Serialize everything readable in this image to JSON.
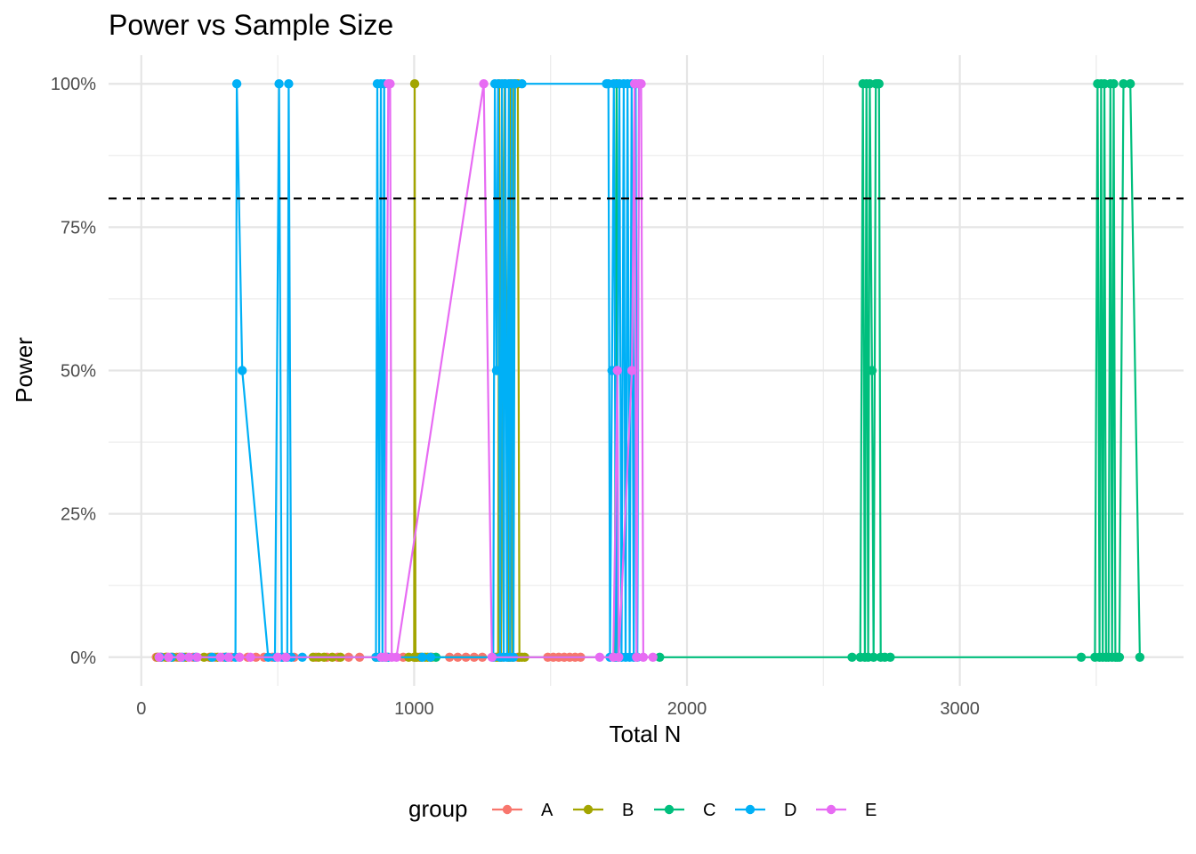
{
  "chart_data": {
    "type": "line",
    "title": "Power vs Sample Size",
    "xlabel": "Total N",
    "ylabel": "Power",
    "xlim": [
      -120,
      3820
    ],
    "ylim": [
      -0.05,
      1.05
    ],
    "x_ticks": [
      0,
      1000,
      2000,
      3000
    ],
    "x_tick_labels": [
      "0",
      "1000",
      "2000",
      "3000"
    ],
    "y_ticks": [
      0,
      0.25,
      0.5,
      0.75,
      1.0
    ],
    "y_tick_labels": [
      "0%",
      "25%",
      "50%",
      "75%",
      "100%"
    ],
    "reference_line": {
      "y": 0.8,
      "style": "dashed",
      "color": "#000000"
    },
    "grid": true,
    "legend": {
      "title": "group",
      "position": "bottom"
    },
    "series": [
      {
        "name": "A",
        "color": "#F8766D",
        "points": [
          [
            55,
            0
          ],
          [
            75,
            0
          ],
          [
            95,
            0
          ],
          [
            130,
            0
          ],
          [
            160,
            0
          ],
          [
            190,
            0
          ],
          [
            250,
            0
          ],
          [
            270,
            0
          ],
          [
            300,
            0
          ],
          [
            330,
            0
          ],
          [
            360,
            0
          ],
          [
            390,
            0
          ],
          [
            420,
            0
          ],
          [
            450,
            0
          ],
          [
            480,
            0
          ],
          [
            520,
            0
          ],
          [
            560,
            0
          ],
          [
            640,
            0
          ],
          [
            680,
            0
          ],
          [
            720,
            0
          ],
          [
            760,
            0
          ],
          [
            800,
            0
          ],
          [
            900,
            0
          ],
          [
            960,
            0
          ],
          [
            1020,
            0
          ],
          [
            1060,
            0
          ],
          [
            1130,
            0
          ],
          [
            1160,
            0
          ],
          [
            1190,
            0
          ],
          [
            1220,
            0
          ],
          [
            1250,
            0
          ],
          [
            1320,
            0
          ],
          [
            1350,
            0
          ],
          [
            1380,
            0
          ],
          [
            1490,
            0
          ],
          [
            1510,
            0
          ],
          [
            1530,
            0
          ],
          [
            1550,
            0
          ],
          [
            1570,
            0
          ],
          [
            1590,
            0
          ],
          [
            1610,
            0
          ]
        ]
      },
      {
        "name": "B",
        "color": "#A3A500",
        "points": [
          [
            60,
            0
          ],
          [
            90,
            0
          ],
          [
            115,
            0
          ],
          [
            140,
            0
          ],
          [
            165,
            0
          ],
          [
            230,
            0
          ],
          [
            255,
            0
          ],
          [
            280,
            0
          ],
          [
            310,
            0
          ],
          [
            630,
            0
          ],
          [
            650,
            0
          ],
          [
            670,
            0
          ],
          [
            700,
            0
          ],
          [
            730,
            0
          ],
          [
            860,
            0
          ],
          [
            980,
            0
          ],
          [
            1000,
            0
          ],
          [
            1002,
            1.0
          ],
          [
            1005,
            0
          ],
          [
            1010,
            0
          ],
          [
            1025,
            0
          ],
          [
            1040,
            0
          ],
          [
            1050,
            0
          ],
          [
            1065,
            0
          ],
          [
            1300,
            0
          ],
          [
            1308,
            0
          ],
          [
            1312,
            1.0
          ],
          [
            1318,
            0
          ],
          [
            1325,
            0.5
          ],
          [
            1332,
            1.0
          ],
          [
            1340,
            0.5
          ],
          [
            1346,
            0
          ],
          [
            1354,
            1.0
          ],
          [
            1360,
            0
          ],
          [
            1366,
            1.0
          ],
          [
            1372,
            1.0
          ],
          [
            1380,
            1.0
          ],
          [
            1386,
            0
          ],
          [
            1395,
            0
          ],
          [
            1405,
            0
          ]
        ]
      },
      {
        "name": "C",
        "color": "#00BF7D",
        "points": [
          [
            1080,
            0
          ],
          [
            1735,
            0
          ],
          [
            1742,
            1.0
          ],
          [
            1748,
            0
          ],
          [
            1900,
            0
          ],
          [
            2605,
            0
          ],
          [
            2635,
            0
          ],
          [
            2645,
            1.0
          ],
          [
            2652,
            0
          ],
          [
            2658,
            1.0
          ],
          [
            2664,
            0
          ],
          [
            2670,
            1.0
          ],
          [
            2678,
            0.5
          ],
          [
            2684,
            0
          ],
          [
            2692,
            1.0
          ],
          [
            2698,
            1.0
          ],
          [
            2704,
            1.0
          ],
          [
            2710,
            0
          ],
          [
            2725,
            0
          ],
          [
            2745,
            0
          ],
          [
            3445,
            0
          ],
          [
            3495,
            0
          ],
          [
            3505,
            1.0
          ],
          [
            3512,
            0
          ],
          [
            3518,
            1.0
          ],
          [
            3524,
            0
          ],
          [
            3530,
            1.0
          ],
          [
            3536,
            0
          ],
          [
            3545,
            0
          ],
          [
            3552,
            1.0
          ],
          [
            3558,
            0
          ],
          [
            3564,
            1.0
          ],
          [
            3570,
            0
          ],
          [
            3577,
            0
          ],
          [
            3585,
            0
          ],
          [
            3600,
            1.0
          ],
          [
            3625,
            1.0
          ],
          [
            3660,
            0
          ]
        ]
      },
      {
        "name": "D",
        "color": "#00B0F6",
        "points": [
          [
            70,
            0
          ],
          [
            110,
            0
          ],
          [
            150,
            0
          ],
          [
            200,
            0
          ],
          [
            260,
            0
          ],
          [
            310,
            0
          ],
          [
            345,
            0
          ],
          [
            350,
            1.0
          ],
          [
            370,
            0.5
          ],
          [
            465,
            0
          ],
          [
            490,
            0
          ],
          [
            505,
            1.0
          ],
          [
            515,
            0
          ],
          [
            535,
            0
          ],
          [
            540,
            1.0
          ],
          [
            550,
            0
          ],
          [
            590,
            0
          ],
          [
            860,
            0
          ],
          [
            865,
            1.0
          ],
          [
            872,
            0
          ],
          [
            878,
            1.0
          ],
          [
            884,
            0
          ],
          [
            890,
            1.0
          ],
          [
            895,
            0
          ],
          [
            905,
            0
          ],
          [
            1030,
            0
          ],
          [
            1060,
            0
          ],
          [
            1290,
            0
          ],
          [
            1296,
            1.0
          ],
          [
            1302,
            0.5
          ],
          [
            1308,
            1.0
          ],
          [
            1315,
            0
          ],
          [
            1322,
            1.0
          ],
          [
            1328,
            0
          ],
          [
            1334,
            1.0
          ],
          [
            1341,
            0
          ],
          [
            1347,
            1.0
          ],
          [
            1352,
            0
          ],
          [
            1358,
            1.0
          ],
          [
            1364,
            0
          ],
          [
            1370,
            1.0
          ],
          [
            1395,
            1.0
          ],
          [
            1705,
            1.0
          ],
          [
            1712,
            1.0
          ],
          [
            1718,
            0
          ],
          [
            1725,
            0.5
          ],
          [
            1732,
            1.0
          ],
          [
            1740,
            0
          ],
          [
            1752,
            1.0
          ],
          [
            1760,
            0
          ],
          [
            1768,
            1.0
          ],
          [
            1775,
            0
          ],
          [
            1782,
            1.0
          ],
          [
            1790,
            0
          ],
          [
            1797,
            1.0
          ],
          [
            1805,
            0
          ],
          [
            1812,
            1.0
          ],
          [
            1818,
            0
          ],
          [
            1824,
            1.0
          ]
        ]
      },
      {
        "name": "E",
        "color": "#E76BF3",
        "points": [
          [
            65,
            0
          ],
          [
            100,
            0
          ],
          [
            145,
            0
          ],
          [
            175,
            0
          ],
          [
            205,
            0
          ],
          [
            290,
            0
          ],
          [
            320,
            0
          ],
          [
            360,
            0
          ],
          [
            400,
            0
          ],
          [
            500,
            0
          ],
          [
            530,
            0
          ],
          [
            880,
            0
          ],
          [
            895,
            0
          ],
          [
            905,
            1.0
          ],
          [
            912,
            1.0
          ],
          [
            918,
            0
          ],
          [
            935,
            0
          ],
          [
            1255,
            1.0
          ],
          [
            1285,
            0
          ],
          [
            1680,
            0
          ],
          [
            1730,
            0
          ],
          [
            1745,
            0.5
          ],
          [
            1750,
            0
          ],
          [
            1798,
            0.5
          ],
          [
            1808,
            1.0
          ],
          [
            1815,
            0
          ],
          [
            1825,
            1.0
          ],
          [
            1832,
            1.0
          ],
          [
            1840,
            0
          ],
          [
            1875,
            0
          ]
        ]
      }
    ]
  }
}
